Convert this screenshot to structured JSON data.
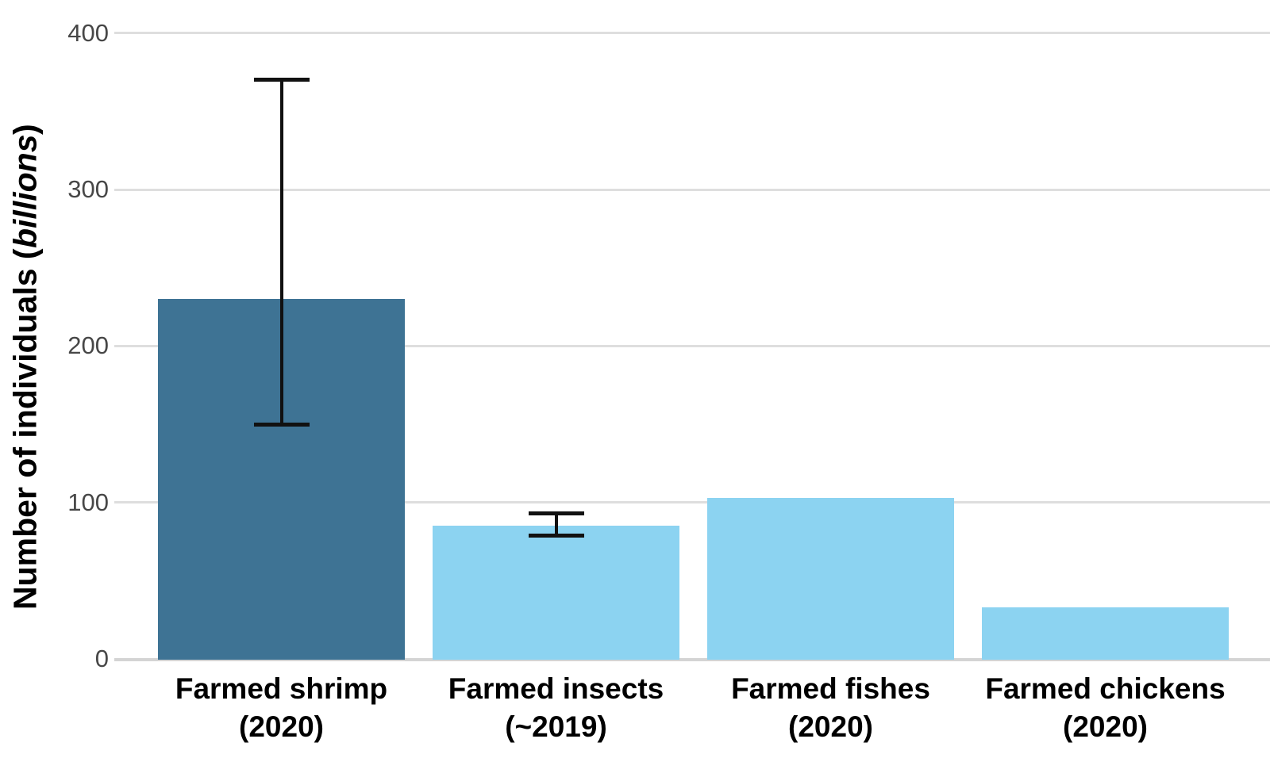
{
  "chart_data": {
    "type": "bar",
    "title": "",
    "ylabel_prefix": "Number of individuals (",
    "ylabel_italic": "billions",
    "ylabel_suffix": ")",
    "xlabel": "",
    "categories": [
      {
        "line1": "Farmed shrimp",
        "line2": "(2020)"
      },
      {
        "line1": "Farmed insects",
        "line2": "(~2019)"
      },
      {
        "line1": "Farmed fishes",
        "line2": "(2020)"
      },
      {
        "line1": "Farmed chickens",
        "line2": "(2020)"
      }
    ],
    "values": [
      230,
      85,
      103,
      33
    ],
    "error_bars": [
      {
        "low": 150,
        "high": 370
      },
      {
        "low": 79,
        "high": 93
      },
      null,
      null
    ],
    "bar_colors": [
      "#3e7394",
      "#8cd3f1",
      "#8cd3f1",
      "#8cd3f1"
    ],
    "yticks": [
      0,
      100,
      200,
      300,
      400
    ],
    "ylim": [
      0,
      410
    ],
    "grid": "horizontal",
    "legend": "none"
  },
  "colors": {
    "background": "#ffffff",
    "gridline": "#dedede",
    "axis_line": "#d4d4d4",
    "tick_label": "#474747",
    "category_label": "#000000",
    "error_bar": "#111111"
  }
}
